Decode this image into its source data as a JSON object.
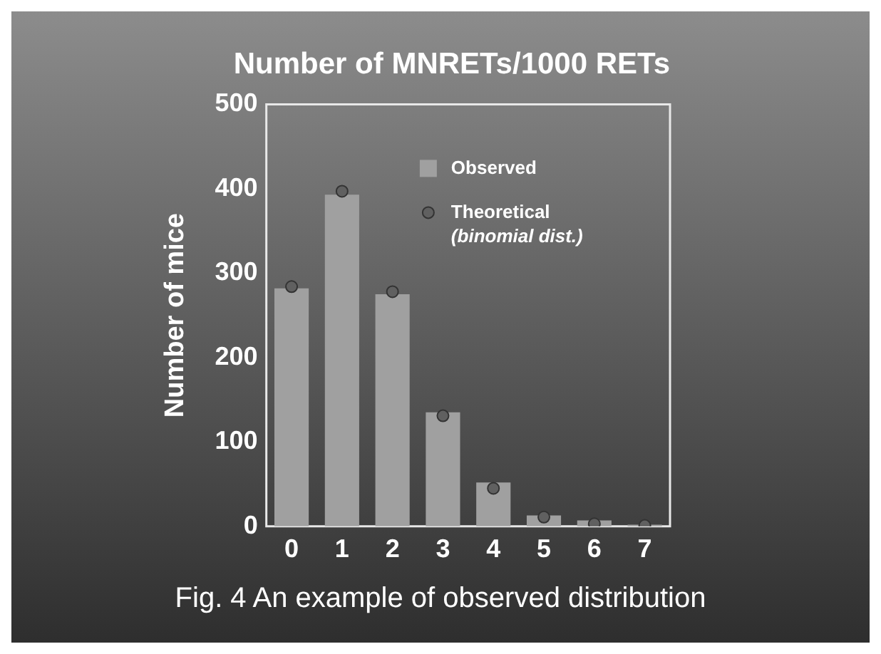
{
  "chart_data": {
    "type": "bar",
    "title": "Number of MNRETs/1000 RETs",
    "ylabel": "Number of mice",
    "categories": [
      "0",
      "1",
      "2",
      "3",
      "4",
      "5",
      "6",
      "7"
    ],
    "series": [
      {
        "name": "Observed",
        "color": "#a0a0a0",
        "values": [
          282,
          393,
          275,
          135,
          52,
          13,
          7,
          2
        ]
      },
      {
        "name": "Theoretical\n(binomial dist.)",
        "type": "scatter",
        "color": "#606060",
        "x": [
          "0",
          "1",
          "2",
          "3",
          "4",
          "5",
          "6",
          "7"
        ],
        "values": [
          284,
          397,
          278,
          131,
          45,
          11,
          3,
          1
        ]
      }
    ],
    "ylim": [
      0,
      500
    ],
    "yticks": [
      0,
      100,
      200,
      300,
      400,
      500
    ],
    "grid": false,
    "legend": "top right",
    "marker": "circle",
    "annotations": [
      "Fig. 4 An example of observed distribution"
    ]
  }
}
